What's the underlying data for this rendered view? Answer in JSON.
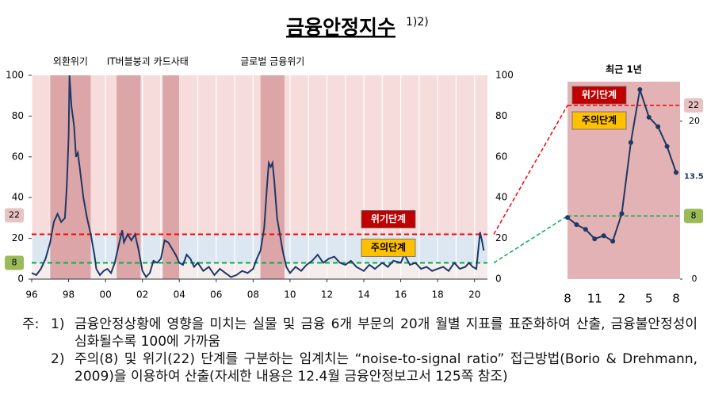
{
  "title": "금융안정지수",
  "title_note": "1)2)",
  "chart_data": [
    {
      "type": "line",
      "color": "#1f3864",
      "xlim": [
        1996,
        2020.7
      ],
      "xticks": [
        {
          "value": 1996,
          "label": "96"
        },
        {
          "value": 1998,
          "label": "98"
        },
        {
          "value": 2000,
          "label": "00"
        },
        {
          "value": 2002,
          "label": "02"
        },
        {
          "value": 2004,
          "label": "04"
        },
        {
          "value": 2006,
          "label": "06"
        },
        {
          "value": 2008,
          "label": "08"
        },
        {
          "value": 2010,
          "label": "10"
        },
        {
          "value": 2012,
          "label": "12"
        },
        {
          "value": 2014,
          "label": "14"
        },
        {
          "value": 2016,
          "label": "16"
        },
        {
          "value": 2018,
          "label": "18"
        },
        {
          "value": 2020,
          "label": "20"
        }
      ],
      "ylim": [
        0,
        100
      ],
      "yticks": [
        0,
        20,
        40,
        60,
        80,
        100
      ],
      "periods": [
        {
          "label": "외환위기",
          "start": 1997.0,
          "end": 1999.2
        },
        {
          "label": "IT버블붕괴",
          "start": 2000.6,
          "end": 2001.9
        },
        {
          "label": "카드사태",
          "start": 2003.1,
          "end": 2004.0
        },
        {
          "label": "글로벌 금융위기",
          "start": 2008.4,
          "end": 2009.7
        }
      ],
      "thresholds": [
        {
          "name": "위기단계",
          "value": 22,
          "color": "#ff0000"
        },
        {
          "name": "주의단계",
          "value": 8,
          "color": "#00b050"
        }
      ],
      "x": [
        1996.0,
        1996.25,
        1996.5,
        1996.75,
        1997.0,
        1997.2,
        1997.4,
        1997.6,
        1997.8,
        1997.9,
        1998.0,
        1998.05,
        1998.15,
        1998.3,
        1998.4,
        1998.5,
        1998.6,
        1998.8,
        1999.0,
        1999.2,
        1999.4,
        1999.5,
        1999.7,
        1999.9,
        2000.1,
        2000.3,
        2000.5,
        2000.7,
        2000.9,
        2001.0,
        2001.2,
        2001.4,
        2001.6,
        2001.8,
        2002.0,
        2002.2,
        2002.4,
        2002.6,
        2002.8,
        2003.0,
        2003.2,
        2003.4,
        2003.6,
        2003.8,
        2004.0,
        2004.2,
        2004.4,
        2004.6,
        2004.8,
        2005.0,
        2005.3,
        2005.6,
        2005.9,
        2006.2,
        2006.5,
        2006.8,
        2007.1,
        2007.4,
        2007.7,
        2008.0,
        2008.2,
        2008.4,
        2008.6,
        2008.75,
        2008.85,
        2008.95,
        2009.05,
        2009.15,
        2009.3,
        2009.45,
        2009.6,
        2009.8,
        2010.0,
        2010.3,
        2010.6,
        2010.9,
        2011.2,
        2011.5,
        2011.8,
        2012.1,
        2012.4,
        2012.7,
        2013.0,
        2013.3,
        2013.6,
        2014.0,
        2014.3,
        2014.6,
        2015.0,
        2015.3,
        2015.6,
        2016.0,
        2016.2,
        2016.5,
        2016.8,
        2017.1,
        2017.4,
        2017.7,
        2018.0,
        2018.3,
        2018.6,
        2018.9,
        2019.2,
        2019.5,
        2019.7,
        2019.9,
        2020.1,
        2020.3,
        2020.4,
        2020.5
      ],
      "values": [
        3,
        2,
        5,
        10,
        18,
        28,
        32,
        28,
        30,
        45,
        70,
        100,
        85,
        75,
        60,
        62,
        55,
        40,
        30,
        22,
        12,
        5,
        2,
        4,
        5,
        3,
        8,
        16,
        24,
        18,
        22,
        19,
        22,
        14,
        4,
        1,
        3,
        9,
        8,
        10,
        19,
        18,
        15,
        12,
        8,
        7,
        12,
        10,
        6,
        8,
        4,
        6,
        2,
        5,
        3,
        1,
        2,
        4,
        3,
        5,
        10,
        14,
        25,
        45,
        57,
        55,
        57,
        48,
        30,
        22,
        14,
        6,
        3,
        6,
        4,
        7,
        9,
        12,
        8,
        10,
        11,
        8,
        7,
        9,
        6,
        4,
        7,
        5,
        8,
        6,
        9,
        8,
        12,
        7,
        8,
        5,
        6,
        4,
        5,
        6,
        4,
        8,
        5,
        6,
        8,
        6,
        5,
        23,
        19,
        14
      ]
    },
    {
      "type": "line",
      "title": "최근 1년",
      "color": "#1f3864",
      "categories": [
        "8",
        null,
        null,
        "11",
        null,
        null,
        "2",
        null,
        null,
        "5",
        null,
        null,
        "8"
      ],
      "values": [
        7.8,
        6.9,
        6.3,
        5.1,
        5.5,
        4.8,
        8.3,
        17.3,
        24.0,
        20.5,
        19.3,
        16.8,
        13.5
      ],
      "value_labels": [
        null,
        null,
        null,
        null,
        null,
        null,
        null,
        null,
        null,
        null,
        null,
        null,
        "13.5"
      ],
      "ylim": [
        0,
        25
      ],
      "yticks": [
        0,
        20
      ],
      "thresholds": [
        {
          "name": "위기단계",
          "value": 22,
          "color": "#ff0000"
        },
        {
          "name": "주의단계",
          "value": 8,
          "color": "#00b050"
        }
      ]
    }
  ],
  "notes": {
    "prefix": "주:",
    "items": [
      {
        "num": "1)",
        "text": "금융안정상황에 영향을 미치는 실물 및 금융 6개 부문의 20개 월별 지표를 표준화하여 산출, 금융불안정성이 심화될수록 100에 가까움"
      },
      {
        "num": "2)",
        "text": "주의(8) 및 위기(22) 단계를 구분하는 임계치는 “noise-to-signal ratio” 접근방법(Borio & Drehmann, 2009)을 이용하여 산출(자세한 내용은 12.4월 금융안정보고서 125쪽 참조)"
      }
    ]
  }
}
